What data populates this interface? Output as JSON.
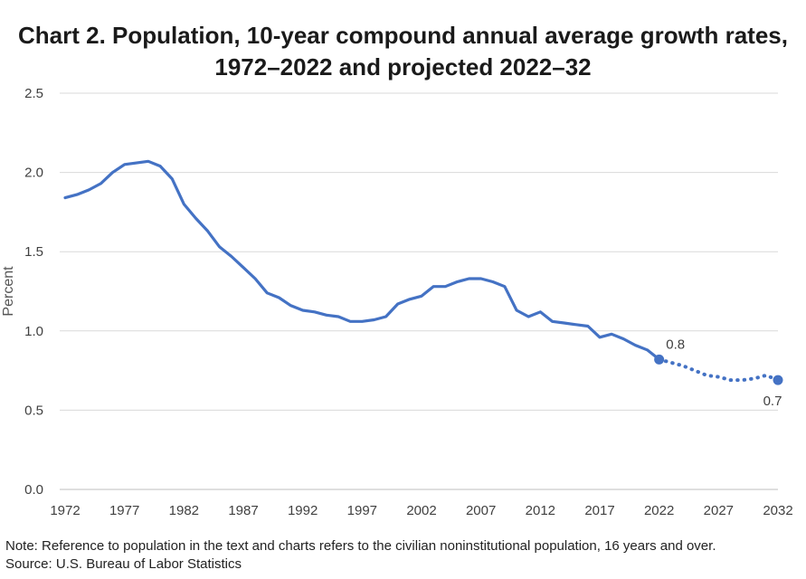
{
  "chart_data": {
    "type": "line",
    "title_line1": "Chart 2. Population, 10-year compound annual average growth rates,",
    "title_line2": "1972–2022 and projected 2022–32",
    "ylabel": "Percent",
    "xlabel": "",
    "ylim": [
      0,
      2.5
    ],
    "yticks": [
      "0.0",
      "0.5",
      "1.0",
      "1.5",
      "2.0",
      "2.5"
    ],
    "xticks": [
      "1972",
      "1977",
      "1982",
      "1987",
      "1992",
      "1997",
      "2002",
      "2007",
      "2012",
      "2017",
      "2022",
      "2027",
      "2032"
    ],
    "xlim": [
      1972,
      2032
    ],
    "grid": "horizontal",
    "color": "#4472C4",
    "series": [
      {
        "style": "solid",
        "x": [
          1972,
          1973,
          1974,
          1975,
          1976,
          1977,
          1978,
          1979,
          1980,
          1981,
          1982,
          1983,
          1984,
          1985,
          1986,
          1987,
          1988,
          1989,
          1990,
          1991,
          1992,
          1993,
          1994,
          1995,
          1996,
          1997,
          1998,
          1999,
          2000,
          2001,
          2002,
          2003,
          2004,
          2005,
          2006,
          2007,
          2008,
          2009,
          2010,
          2011,
          2012,
          2013,
          2014,
          2015,
          2016,
          2017,
          2018,
          2019,
          2020,
          2021,
          2022
        ],
        "y": [
          1.84,
          1.86,
          1.89,
          1.93,
          2.0,
          2.05,
          2.06,
          2.07,
          2.04,
          1.96,
          1.8,
          1.71,
          1.63,
          1.53,
          1.47,
          1.4,
          1.33,
          1.24,
          1.21,
          1.16,
          1.13,
          1.12,
          1.1,
          1.09,
          1.06,
          1.06,
          1.07,
          1.09,
          1.17,
          1.2,
          1.22,
          1.28,
          1.28,
          1.31,
          1.33,
          1.33,
          1.31,
          1.28,
          1.13,
          1.09,
          1.12,
          1.06,
          1.05,
          1.04,
          1.03,
          0.96,
          0.98,
          0.95,
          0.91,
          0.88,
          0.82
        ]
      },
      {
        "style": "dotted",
        "x": [
          2022,
          2023,
          2024,
          2025,
          2026,
          2027,
          2028,
          2029,
          2030,
          2031,
          2032
        ],
        "y": [
          0.82,
          0.8,
          0.78,
          0.75,
          0.72,
          0.71,
          0.69,
          0.69,
          0.7,
          0.72,
          0.69
        ]
      }
    ],
    "annotations": [
      {
        "x": 2022,
        "y": 0.82,
        "label": "0.8"
      },
      {
        "x": 2032,
        "y": 0.69,
        "label": "0.7"
      }
    ]
  },
  "notes": {
    "note": "Note: Reference to population in the text and charts refers to the civilian noninstitutional population, 16 years and over.",
    "source": "Source: U.S. Bureau of Labor Statistics"
  }
}
